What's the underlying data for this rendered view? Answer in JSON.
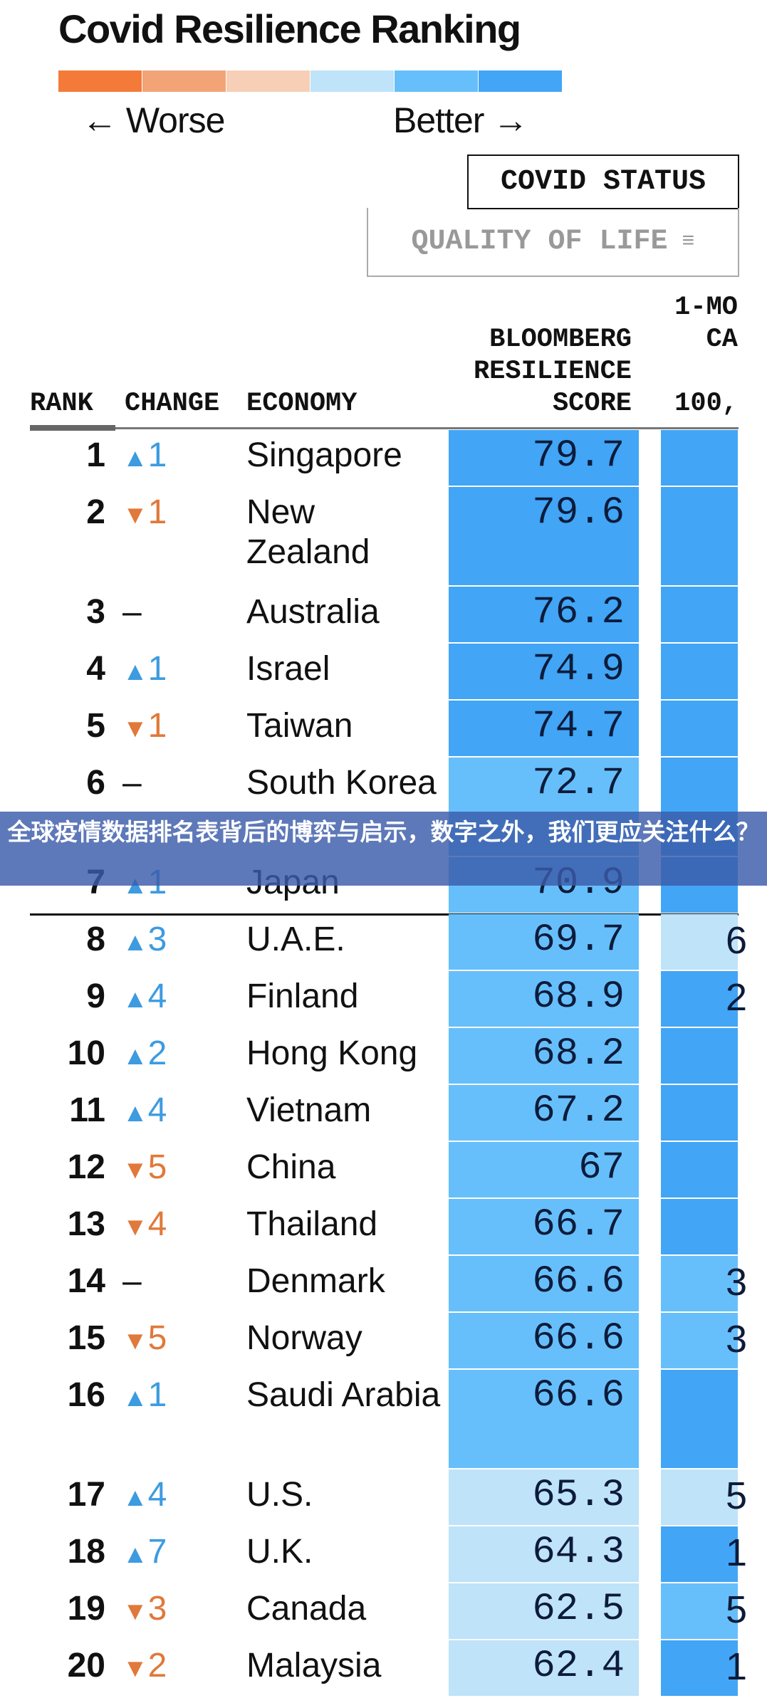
{
  "chart_data": {
    "type": "table",
    "title": "Covid Resilience Ranking",
    "legend": {
      "worse_label": "← Worse",
      "better_label": "Better →",
      "colors": [
        "#f47a3a",
        "#f2a477",
        "#f7cfb6",
        "#bfe3f8",
        "#66bffb",
        "#42a5f5"
      ]
    },
    "tabs": {
      "active": "COVID STATUS",
      "inactive": "QUALITY OF LIFE",
      "inactive_icon": "filter-icon"
    },
    "columns": {
      "rank": "RANK",
      "change": "CHANGE",
      "economy": "ECONOMY",
      "score": [
        "BLOOMBERG",
        "RESILIENCE",
        "SCORE"
      ],
      "mo": [
        "1-MO",
        "CA",
        "100,"
      ]
    },
    "colors": {
      "dark_blue": "#42a5f5",
      "mid_blue": "#66bffb",
      "light_blue": "#bfe3f8",
      "up": "#3d9be0",
      "down": "#e0793a"
    },
    "rows": [
      {
        "rank": "1",
        "dir": "up",
        "change": "1",
        "economy": "Singapore",
        "score": "79.7",
        "score_level": "dark",
        "mo": "",
        "mo_level": "dark"
      },
      {
        "rank": "2",
        "dir": "down",
        "change": "1",
        "economy": "New Zealand",
        "score": "79.6",
        "score_level": "dark",
        "mo": "",
        "mo_level": "dark"
      },
      {
        "rank": "3",
        "dir": "none",
        "change": "–",
        "economy": "Australia",
        "score": "76.2",
        "score_level": "dark",
        "mo": "",
        "mo_level": "dark"
      },
      {
        "rank": "4",
        "dir": "up",
        "change": "1",
        "economy": "Israel",
        "score": "74.9",
        "score_level": "dark",
        "mo": "",
        "mo_level": "dark"
      },
      {
        "rank": "5",
        "dir": "down",
        "change": "1",
        "economy": "Taiwan",
        "score": "74.7",
        "score_level": "dark",
        "mo": "",
        "mo_level": "dark"
      },
      {
        "rank": "6",
        "dir": "none",
        "change": "–",
        "economy": "South Korea",
        "score": "72.7",
        "score_level": "mid",
        "mo": "",
        "mo_level": "dark"
      },
      {
        "rank": "7",
        "dir": "up",
        "change": "1",
        "economy": "Japan",
        "score": "70.9",
        "score_level": "mid",
        "mo": "",
        "mo_level": "dark"
      },
      {
        "rank": "8",
        "dir": "up",
        "change": "3",
        "economy": "U.A.E.",
        "score": "69.7",
        "score_level": "mid",
        "mo": "6",
        "mo_level": "light"
      },
      {
        "rank": "9",
        "dir": "up",
        "change": "4",
        "economy": "Finland",
        "score": "68.9",
        "score_level": "mid",
        "mo": "2",
        "mo_level": "dark"
      },
      {
        "rank": "10",
        "dir": "up",
        "change": "2",
        "economy": "Hong Kong",
        "score": "68.2",
        "score_level": "mid",
        "mo": "",
        "mo_level": "dark"
      },
      {
        "rank": "11",
        "dir": "up",
        "change": "4",
        "economy": "Vietnam",
        "score": "67.2",
        "score_level": "mid",
        "mo": "",
        "mo_level": "dark"
      },
      {
        "rank": "12",
        "dir": "down",
        "change": "5",
        "economy": "China",
        "score": "67",
        "score_level": "mid",
        "mo": "",
        "mo_level": "dark"
      },
      {
        "rank": "13",
        "dir": "down",
        "change": "4",
        "economy": "Thailand",
        "score": "66.7",
        "score_level": "mid",
        "mo": "",
        "mo_level": "dark"
      },
      {
        "rank": "14",
        "dir": "none",
        "change": "–",
        "economy": "Denmark",
        "score": "66.6",
        "score_level": "mid",
        "mo": "3",
        "mo_level": "mid"
      },
      {
        "rank": "15",
        "dir": "down",
        "change": "5",
        "economy": "Norway",
        "score": "66.6",
        "score_level": "mid",
        "mo": "3",
        "mo_level": "mid"
      },
      {
        "rank": "16",
        "dir": "up",
        "change": "1",
        "economy": "Saudi Arabia",
        "score": "66.6",
        "score_level": "mid",
        "mo": "",
        "mo_level": "dark"
      },
      {
        "rank": "17",
        "dir": "up",
        "change": "4",
        "economy": "U.S.",
        "score": "65.3",
        "score_level": "light",
        "mo": "5",
        "mo_level": "light"
      },
      {
        "rank": "18",
        "dir": "up",
        "change": "7",
        "economy": "U.K.",
        "score": "64.3",
        "score_level": "light",
        "mo": "1",
        "mo_level": "dark"
      },
      {
        "rank": "19",
        "dir": "down",
        "change": "3",
        "economy": "Canada",
        "score": "62.5",
        "score_level": "light",
        "mo": "5",
        "mo_level": "mid"
      },
      {
        "rank": "20",
        "dir": "down",
        "change": "2",
        "economy": "Malaysia",
        "score": "62.4",
        "score_level": "light",
        "mo": "1",
        "mo_level": "dark"
      }
    ]
  },
  "banner": {
    "text": "全球疫情数据排名表背后的博弈与启示，数字之外，我们更应关注什么？"
  }
}
